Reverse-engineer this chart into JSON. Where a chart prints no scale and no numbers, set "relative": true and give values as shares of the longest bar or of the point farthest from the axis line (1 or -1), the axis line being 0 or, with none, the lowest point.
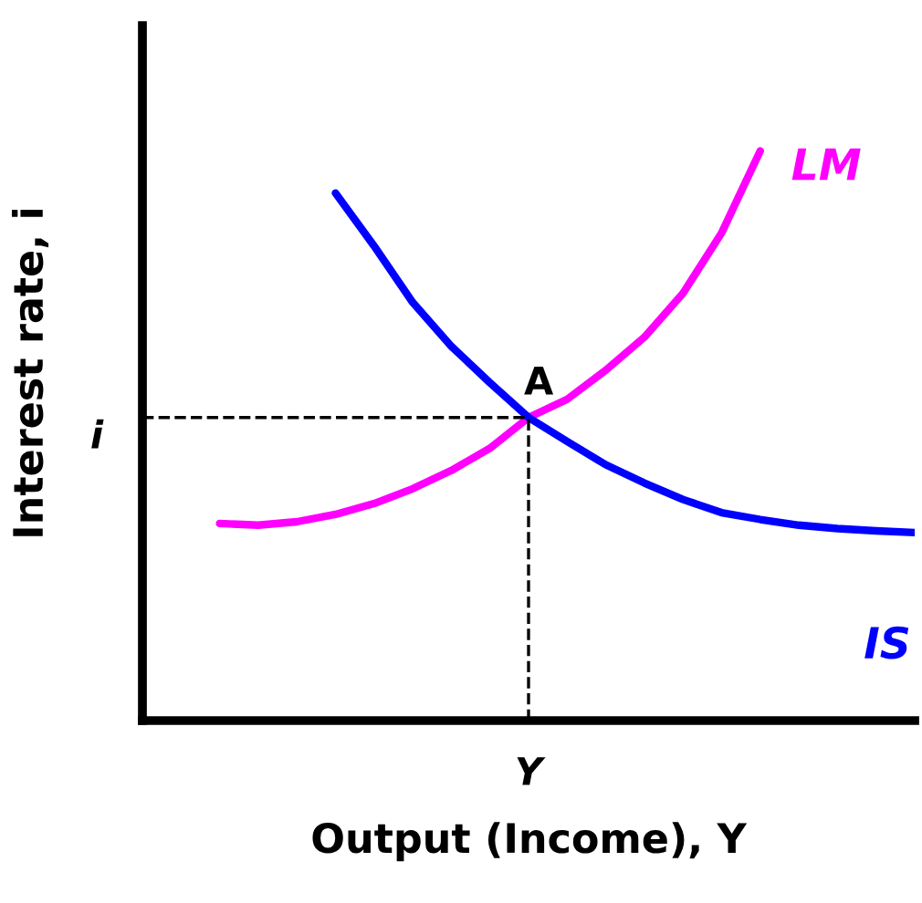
{
  "chart_data": {
    "type": "line",
    "relative": true,
    "xlabel": "Output (Income), Y",
    "ylabel": "Interest rate, i",
    "categories": [
      null,
      null,
      null,
      null,
      null,
      null,
      null,
      null,
      null,
      null,
      null,
      null,
      null,
      null,
      null,
      null,
      null,
      null,
      null,
      null,
      null
    ],
    "series": [
      {
        "name": "LM",
        "color": "#ff00ff",
        "values": [
          null,
          null,
          0.346,
          0.343,
          0.349,
          0.362,
          0.381,
          0.407,
          0.439,
          0.478,
          0.532,
          0.564,
          0.615,
          0.673,
          0.75,
          0.856,
          1,
          null,
          null,
          null,
          null
        ]
      },
      {
        "name": "IS",
        "color": "#0000ff",
        "values": [
          null,
          null,
          null,
          null,
          null,
          0.926,
          0.833,
          0.734,
          0.657,
          0.593,
          0.532,
          0.49,
          0.449,
          0.417,
          0.388,
          0.365,
          0.353,
          0.343,
          0.337,
          0.333,
          0.33
        ]
      }
    ],
    "ref_lines": [
      {
        "axis": "y",
        "value": 0.532,
        "label": "i",
        "line_style": "dashed",
        "color": "#000000"
      }
    ],
    "annotations": [
      {
        "text": "A",
        "y": 0.532
      },
      "Y"
    ]
  }
}
